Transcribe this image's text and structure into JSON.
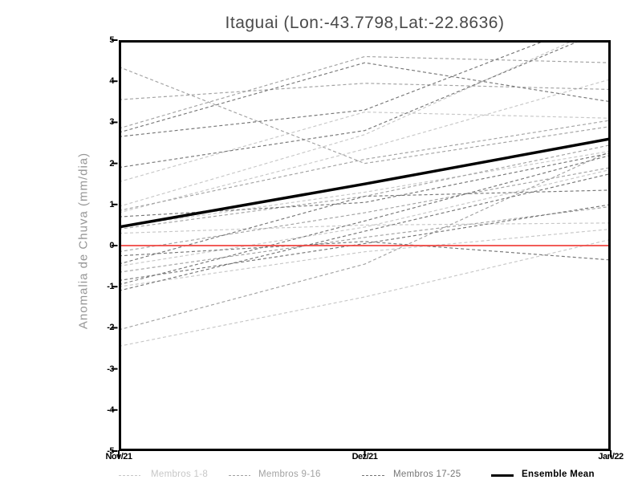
{
  "chart_data": {
    "type": "line",
    "title": "Itaguai (Lon:-43.7798,Lat:-22.8636)",
    "ylabel": "Anomalia de Chuva (mm/dia)",
    "x_categories": [
      "Nov/21",
      "Dez/21",
      "Jan/22"
    ],
    "ylim": [
      -5,
      5
    ],
    "y_ticks": [
      5,
      4,
      3,
      2,
      1,
      0,
      -1,
      -2,
      -3,
      -4,
      -5
    ],
    "grid": false,
    "legend_position": "bottom",
    "zero_line": {
      "value": 0,
      "color": "#f04540"
    },
    "groups": [
      {
        "name": "Membros 1-8",
        "color": "#c7c7c7",
        "line_style": "dashed",
        "series": [
          [
            1.55,
            3.25,
            3.1
          ],
          [
            0.8,
            2.35,
            4.05
          ],
          [
            0.45,
            1.3,
            2.3
          ],
          [
            0.3,
            0.5,
            0.55
          ],
          [
            -0.5,
            0.45,
            1.85
          ],
          [
            -1.0,
            -0.15,
            0.4
          ],
          [
            -2.45,
            -1.25,
            0.15
          ],
          [
            0.95,
            2.7,
            5.4
          ]
        ]
      },
      {
        "name": "Membros 9-16",
        "color": "#a2a2a2",
        "line_style": "dashed",
        "series": [
          [
            4.35,
            2.0,
            2.9
          ],
          [
            3.55,
            3.95,
            3.8
          ],
          [
            2.85,
            4.6,
            4.45
          ],
          [
            -2.05,
            -0.45,
            2.3
          ],
          [
            0.85,
            2.1,
            3.05
          ],
          [
            -0.15,
            0.8,
            1.9
          ],
          [
            0.4,
            1.2,
            2.45
          ],
          [
            -0.65,
            0.2,
            0.95
          ]
        ]
      },
      {
        "name": "Membros 17-25",
        "color": "#757575",
        "line_style": "dashed",
        "series": [
          [
            2.75,
            4.45,
            3.5
          ],
          [
            2.65,
            3.3,
            5.6
          ],
          [
            1.9,
            2.8,
            5.3
          ],
          [
            0.7,
            1.05,
            2.25
          ],
          [
            -0.25,
            0.1,
            -0.35
          ],
          [
            -0.45,
            1.2,
            1.35
          ],
          [
            -0.85,
            0.05,
            1.0
          ],
          [
            -0.95,
            0.6,
            2.2
          ],
          [
            -1.1,
            0.35,
            1.75
          ]
        ]
      }
    ],
    "mean": {
      "name": "Ensemble Mean",
      "color": "#000000",
      "line_style": "solid",
      "values": [
        0.45,
        1.5,
        2.6
      ]
    }
  },
  "colors": {
    "background": "#ffffff",
    "frame": "#000000",
    "title_text": "#4a4a4a",
    "axis_label_text": "#969696",
    "tick_text": "#000000"
  }
}
